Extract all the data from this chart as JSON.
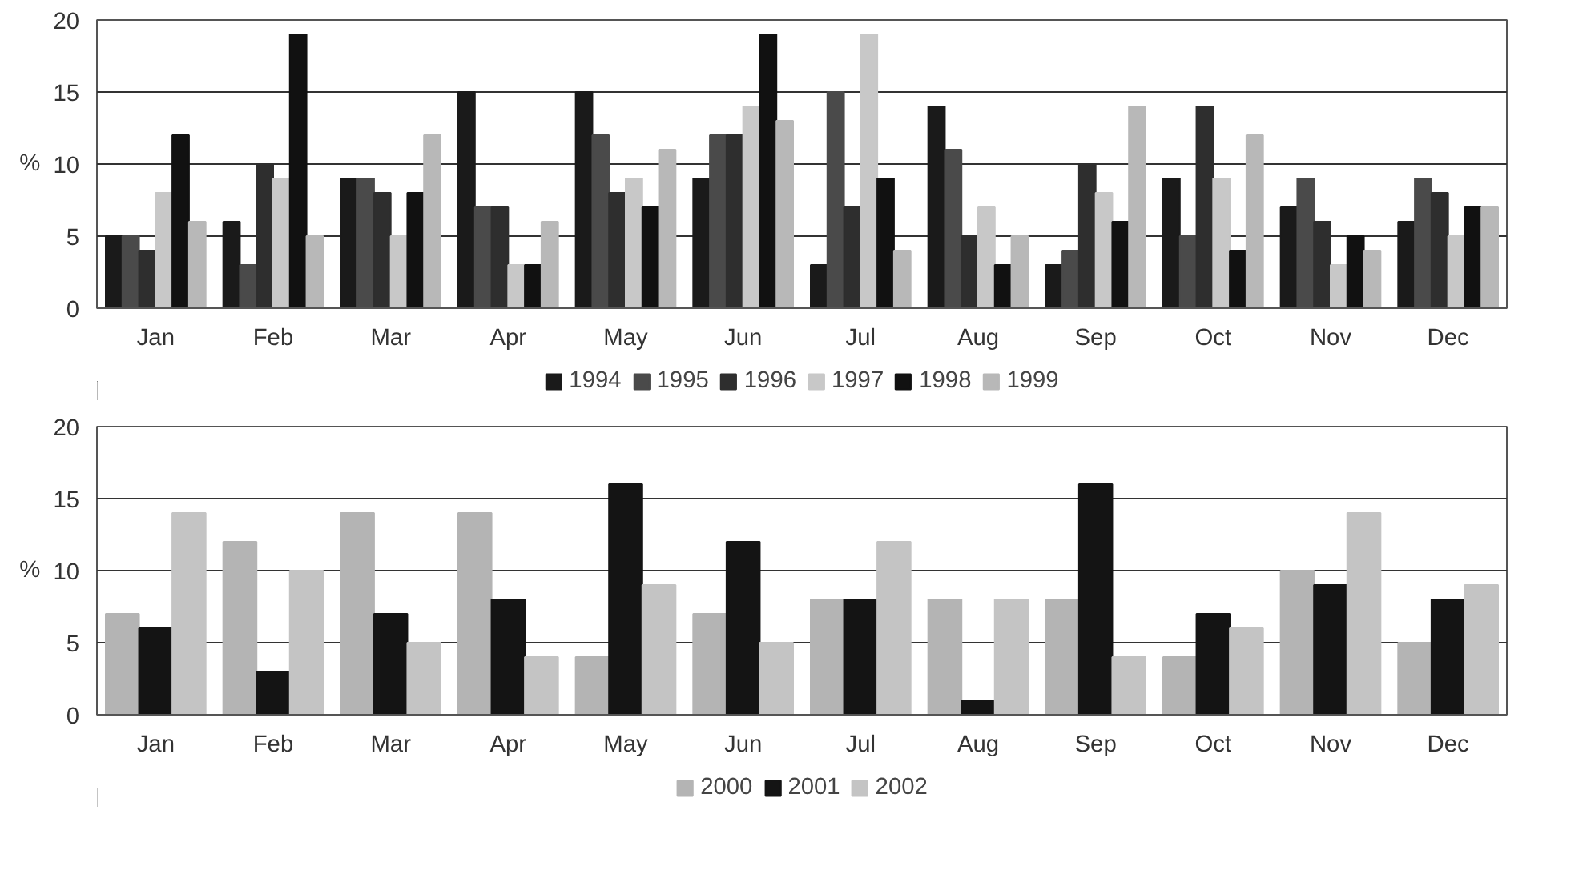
{
  "chart_data": [
    {
      "type": "bar",
      "ylabel": "%",
      "categories": [
        "Jan",
        "Feb",
        "Mar",
        "Apr",
        "May",
        "Jun",
        "Jul",
        "Aug",
        "Sep",
        "Oct",
        "Nov",
        "Dec"
      ],
      "ylim": [
        0,
        20
      ],
      "yticks": [
        0,
        5,
        10,
        15,
        20
      ],
      "grid": "y",
      "legend": "bottom",
      "series": [
        {
          "name": "1994",
          "color": "#1a1a1a",
          "values": [
            5,
            6,
            9,
            15,
            15,
            9,
            3,
            14,
            3,
            9,
            7,
            6
          ]
        },
        {
          "name": "1995",
          "color": "#4a4a4a",
          "values": [
            5,
            3,
            9,
            7,
            12,
            12,
            15,
            11,
            4,
            5,
            9,
            9
          ]
        },
        {
          "name": "1996",
          "color": "#2e2e2e",
          "values": [
            4,
            10,
            8,
            7,
            8,
            12,
            7,
            5,
            10,
            14,
            6,
            8
          ]
        },
        {
          "name": "1997",
          "color": "#c8c8c8",
          "values": [
            8,
            9,
            5,
            3,
            9,
            14,
            19,
            7,
            8,
            9,
            3,
            5
          ]
        },
        {
          "name": "1998",
          "color": "#111111",
          "values": [
            12,
            19,
            8,
            3,
            7,
            19,
            9,
            3,
            6,
            4,
            5,
            7
          ]
        },
        {
          "name": "1999",
          "color": "#b8b8b8",
          "values": [
            6,
            5,
            12,
            6,
            11,
            13,
            4,
            5,
            14,
            12,
            4,
            7
          ]
        }
      ]
    },
    {
      "type": "bar",
      "ylabel": "%",
      "categories": [
        "Jan",
        "Feb",
        "Mar",
        "Apr",
        "May",
        "Jun",
        "Jul",
        "Aug",
        "Sep",
        "Oct",
        "Nov",
        "Dec"
      ],
      "ylim": [
        0,
        20
      ],
      "yticks": [
        0,
        5,
        10,
        15,
        20
      ],
      "grid": "y",
      "legend": "bottom",
      "series": [
        {
          "name": "2000",
          "color": "#b4b4b4",
          "values": [
            7,
            12,
            14,
            14,
            4,
            7,
            8,
            8,
            8,
            4,
            10,
            5
          ]
        },
        {
          "name": "2001",
          "color": "#141414",
          "values": [
            6,
            3,
            7,
            8,
            16,
            12,
            8,
            1,
            16,
            7,
            9,
            8
          ]
        },
        {
          "name": "2002",
          "color": "#c4c4c4",
          "values": [
            14,
            10,
            5,
            4,
            9,
            5,
            12,
            8,
            4,
            6,
            14,
            9
          ]
        }
      ]
    }
  ]
}
